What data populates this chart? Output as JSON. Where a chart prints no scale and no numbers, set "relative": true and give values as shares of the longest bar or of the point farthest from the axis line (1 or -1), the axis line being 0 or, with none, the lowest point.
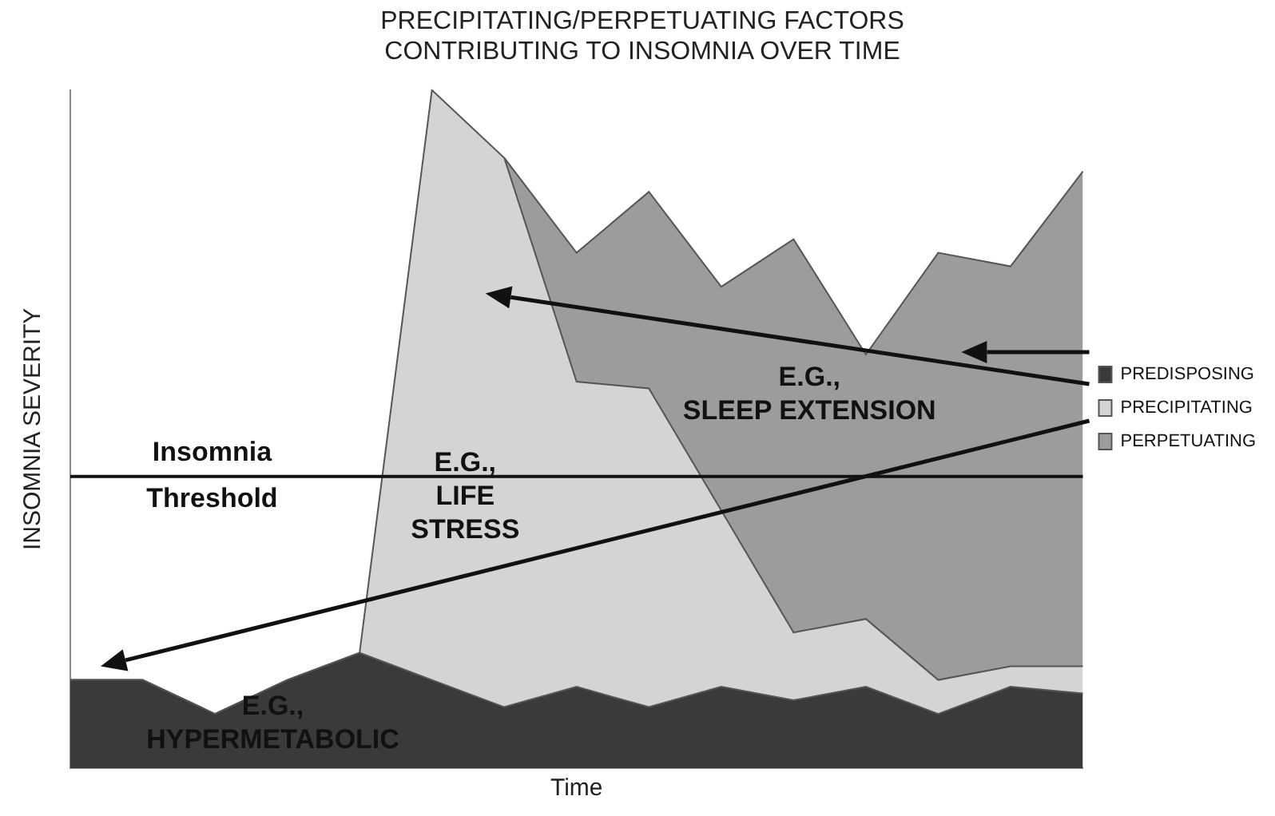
{
  "chart_data": {
    "type": "area",
    "title": "PRECIPITATING/PERPETUATING FACTORS\nCONTRIBUTING TO INSOMNIA OVER TIME",
    "xlabel": "Time",
    "ylabel": "INSOMNIA SEVERITY",
    "relative": true,
    "stacked": true,
    "legend": "right",
    "grid": false,
    "categories": [
      null,
      null,
      null,
      null,
      null,
      null,
      null,
      null,
      null,
      null,
      null,
      null,
      null,
      null,
      null
    ],
    "series": [
      {
        "name": "PREDISPOSING",
        "color": "#3a3a3a",
        "values": [
          0.13,
          0.13,
          0.08,
          0.13,
          0.17,
          0.13,
          0.09,
          0.12,
          0.09,
          0.12,
          0.1,
          0.12,
          0.08,
          0.12,
          0.11
        ]
      },
      {
        "name": "PRECIPITATING",
        "color": "#d4d4d4",
        "values": [
          0,
          0,
          0,
          0,
          0,
          0.87,
          0.81,
          0.45,
          0.47,
          0.26,
          0.1,
          0.1,
          0.05,
          0.03,
          0.04
        ]
      },
      {
        "name": "PERPETUATING",
        "color": "#9c9c9c",
        "values": [
          null,
          null,
          null,
          null,
          null,
          null,
          0,
          0.19,
          0.29,
          0.33,
          0.58,
          0.39,
          0.63,
          0.59,
          0.73
        ]
      }
    ],
    "ref_lines": [
      {
        "axis": "y",
        "value": 0.43,
        "label": "Insomnia Threshold",
        "color": "#111111"
      }
    ],
    "annotations": [
      "E.G.,\nLIFE\nSTRESS",
      "E.G.,\nSLEEP EXTENSION",
      "E.G.,\nHYPERMETABOLIC"
    ]
  }
}
